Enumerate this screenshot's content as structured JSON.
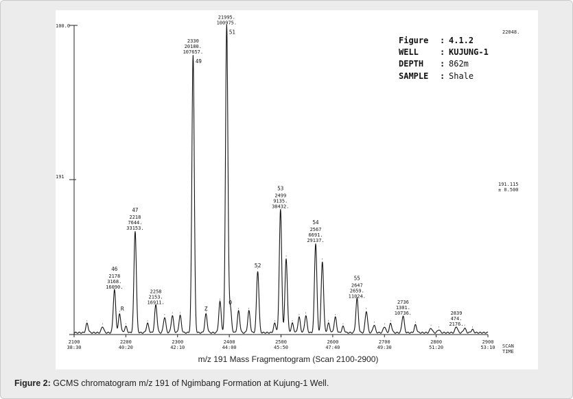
{
  "caption": {
    "label": "Figure 2:",
    "text": "GCMS chromatogram m/z 191 of Ngimbang Formation at Kujung-1 Well."
  },
  "info_box": {
    "rows": [
      {
        "key": "Figure",
        "sep": ":",
        "value": "4.1.2"
      },
      {
        "key": "WELL",
        "sep": ":",
        "value": "KUJUNG-1"
      },
      {
        "key": "DEPTH",
        "sep": ":",
        "value": "862m"
      },
      {
        "key": "SAMPLE",
        "sep": ":",
        "value": "Shale"
      }
    ]
  },
  "chart_data": {
    "type": "line",
    "title": "",
    "xlabel": "m/z 191 Mass Fragmentogram (Scan 2100-2900)",
    "ylabel": "",
    "xlim": [
      2100,
      2900
    ],
    "ylim": [
      0,
      100
    ],
    "y_top_label": "100.0",
    "y_mid_label": "191",
    "y_mid_value": 50,
    "top_right_label": "22048.",
    "ion_label_1": "191.115",
    "ion_label_2": "± 0.500",
    "x_axis_end_label_1": "SCAN",
    "x_axis_end_label_2": "TIME",
    "x_ticks": [
      {
        "scan": "2100",
        "time": "38:30",
        "x": 2100
      },
      {
        "scan": "2200",
        "time": "40:20",
        "x": 2200
      },
      {
        "scan": "2300",
        "time": "42:10",
        "x": 2300
      },
      {
        "scan": "2400",
        "time": "44:00",
        "x": 2400
      },
      {
        "scan": "2500",
        "time": "45:50",
        "x": 2500
      },
      {
        "scan": "2600",
        "time": "47:40",
        "x": 2600
      },
      {
        "scan": "2700",
        "time": "49:30",
        "x": 2700
      },
      {
        "scan": "2800",
        "time": "51:20",
        "x": 2800
      },
      {
        "scan": "2900",
        "time": "53:10",
        "x": 2900
      }
    ],
    "major_peaks": [
      {
        "x": 2178,
        "y": 14,
        "label": "46",
        "lines": [
          "2178",
          "3168.",
          "16090."
        ]
      },
      {
        "x": 2218,
        "y": 33,
        "label": "47",
        "lines": [
          "2218",
          "7644.",
          "33153."
        ]
      },
      {
        "x": 2258,
        "y": 9,
        "label": "",
        "lines": [
          "2258",
          "2153.",
          "16911."
        ]
      },
      {
        "x": 2330,
        "y": 90,
        "label": "49",
        "lines": [
          "2330",
          "20180.",
          "107657."
        ]
      },
      {
        "x": 2395,
        "y": 99.5,
        "label": "51",
        "lines": [
          "21995.",
          "100975."
        ]
      },
      {
        "x": 2499,
        "y": 40,
        "label": "53",
        "lines": [
          "2499",
          "9135.",
          "38432."
        ]
      },
      {
        "x": 2567,
        "y": 29,
        "label": "54",
        "lines": [
          "2567",
          "6691.",
          "29137."
        ]
      },
      {
        "x": 2647,
        "y": 11,
        "label": "55",
        "lines": [
          "2647",
          "2659.",
          "11024."
        ]
      },
      {
        "x": 2736,
        "y": 5.5,
        "label": "",
        "lines": [
          "2736",
          "1301.",
          "10736."
        ]
      },
      {
        "x": 2839,
        "y": 2,
        "label": "",
        "lines": [
          "2839",
          "474.",
          "2176."
        ]
      }
    ],
    "minor_peaks": [
      {
        "x": 2125,
        "y": 3
      },
      {
        "x": 2155,
        "y": 2
      },
      {
        "x": 2188,
        "y": 6,
        "label": "R"
      },
      {
        "x": 2200,
        "y": 2
      },
      {
        "x": 2242,
        "y": 3
      },
      {
        "x": 2275,
        "y": 5
      },
      {
        "x": 2290,
        "y": 5.5
      },
      {
        "x": 2305,
        "y": 5.5
      },
      {
        "x": 2355,
        "y": 6,
        "label": "Z"
      },
      {
        "x": 2382,
        "y": 10
      },
      {
        "x": 2402,
        "y": 8,
        "label": "O"
      },
      {
        "x": 2418,
        "y": 7
      },
      {
        "x": 2438,
        "y": 7
      },
      {
        "x": 2455,
        "y": 20,
        "label": "52"
      },
      {
        "x": 2488,
        "y": 3
      },
      {
        "x": 2510,
        "y": 24
      },
      {
        "x": 2522,
        "y": 3
      },
      {
        "x": 2535,
        "y": 5
      },
      {
        "x": 2548,
        "y": 5.5
      },
      {
        "x": 2580,
        "y": 23
      },
      {
        "x": 2592,
        "y": 3
      },
      {
        "x": 2605,
        "y": 5
      },
      {
        "x": 2620,
        "y": 2
      },
      {
        "x": 2665,
        "y": 7
      },
      {
        "x": 2680,
        "y": 2.5
      },
      {
        "x": 2700,
        "y": 2
      },
      {
        "x": 2712,
        "y": 3
      },
      {
        "x": 2760,
        "y": 2.5
      },
      {
        "x": 2790,
        "y": 1.5
      },
      {
        "x": 2805,
        "y": 1
      },
      {
        "x": 2855,
        "y": 1.5
      },
      {
        "x": 2870,
        "y": 1
      }
    ]
  }
}
